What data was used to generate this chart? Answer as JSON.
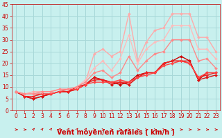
{
  "title": "",
  "xlabel": "Vent moyen/en rafales ( km/h )",
  "ylabel": "",
  "bg_color": "#c8f0ee",
  "grid_color": "#a8d8d8",
  "xlim": [
    -0.5,
    23.5
  ],
  "ylim": [
    0,
    45
  ],
  "xticks": [
    0,
    1,
    2,
    3,
    4,
    5,
    6,
    7,
    8,
    9,
    10,
    11,
    12,
    13,
    14,
    15,
    16,
    17,
    18,
    19,
    20,
    21,
    22,
    23
  ],
  "yticks": [
    0,
    5,
    10,
    15,
    20,
    25,
    30,
    35,
    40,
    45
  ],
  "series": [
    {
      "x": [
        0,
        1,
        2,
        3,
        4,
        5,
        6,
        7,
        8,
        9,
        10,
        11,
        12,
        13,
        14,
        15,
        16,
        17,
        18,
        19,
        20,
        21,
        22,
        23
      ],
      "y": [
        8,
        6,
        5,
        6,
        7,
        8,
        8,
        10,
        11,
        14,
        13,
        12,
        11,
        12,
        15,
        16,
        16,
        20,
        21,
        23,
        21,
        13,
        16,
        16
      ],
      "color": "#cc0000",
      "marker": "D",
      "markersize": 2,
      "linewidth": 1.0
    },
    {
      "x": [
        0,
        1,
        2,
        3,
        4,
        5,
        6,
        7,
        8,
        9,
        10,
        11,
        12,
        13,
        14,
        15,
        16,
        17,
        18,
        19,
        20,
        21,
        22,
        23
      ],
      "y": [
        8,
        6,
        5,
        6,
        7,
        8,
        8,
        9,
        11,
        14,
        13,
        11,
        12,
        11,
        14,
        16,
        16,
        20,
        21,
        21,
        21,
        13,
        14,
        15
      ],
      "color": "#dd1111",
      "marker": "D",
      "markersize": 2,
      "linewidth": 1.0
    },
    {
      "x": [
        0,
        1,
        2,
        3,
        4,
        5,
        6,
        7,
        8,
        9,
        10,
        11,
        12,
        13,
        14,
        15,
        16,
        17,
        18,
        19,
        20,
        21,
        22,
        23
      ],
      "y": [
        8,
        6,
        6,
        7,
        7,
        8,
        8,
        9,
        11,
        13,
        13,
        12,
        12,
        12,
        14,
        16,
        16,
        20,
        21,
        21,
        20,
        14,
        15,
        16
      ],
      "color": "#ee2222",
      "marker": "D",
      "markersize": 2,
      "linewidth": 1.0
    },
    {
      "x": [
        0,
        1,
        2,
        3,
        4,
        5,
        6,
        7,
        8,
        9,
        10,
        11,
        12,
        13,
        14,
        15,
        16,
        17,
        18,
        19,
        20,
        21,
        22,
        23
      ],
      "y": [
        8,
        7,
        7,
        7,
        7,
        8,
        9,
        9,
        11,
        12,
        12,
        12,
        13,
        12,
        14,
        15,
        16,
        19,
        20,
        21,
        20,
        14,
        16,
        16
      ],
      "color": "#ff4444",
      "marker": "D",
      "markersize": 2,
      "linewidth": 1.0
    },
    {
      "x": [
        0,
        1,
        2,
        3,
        4,
        5,
        6,
        7,
        8,
        9,
        10,
        11,
        12,
        13,
        14,
        15,
        16,
        17,
        18,
        19,
        20,
        21,
        22,
        23
      ],
      "y": [
        8,
        7,
        8,
        8,
        8,
        9,
        9,
        10,
        12,
        24,
        26,
        23,
        25,
        41,
        21,
        29,
        34,
        35,
        41,
        41,
        41,
        31,
        31,
        25
      ],
      "color": "#ffaaaa",
      "marker": "D",
      "markersize": 2,
      "linewidth": 1.0
    },
    {
      "x": [
        0,
        1,
        2,
        3,
        4,
        5,
        6,
        7,
        8,
        9,
        10,
        11,
        12,
        13,
        14,
        15,
        16,
        17,
        18,
        19,
        20,
        21,
        22,
        23
      ],
      "y": [
        8,
        7,
        7,
        8,
        8,
        9,
        9,
        10,
        13,
        18,
        21,
        17,
        22,
        32,
        20,
        26,
        29,
        30,
        36,
        36,
        36,
        26,
        26,
        22
      ],
      "color": "#ffbbbb",
      "marker": "D",
      "markersize": 2,
      "linewidth": 1.0
    },
    {
      "x": [
        0,
        1,
        2,
        3,
        4,
        5,
        6,
        7,
        8,
        9,
        10,
        11,
        12,
        13,
        14,
        15,
        16,
        17,
        18,
        19,
        20,
        21,
        22,
        23
      ],
      "y": [
        8,
        7,
        7,
        8,
        8,
        9,
        9,
        10,
        12,
        16,
        17,
        14,
        16,
        23,
        17,
        21,
        24,
        25,
        30,
        30,
        30,
        21,
        22,
        18
      ],
      "color": "#ff8888",
      "marker": "D",
      "markersize": 2,
      "linewidth": 1.0
    }
  ],
  "arrow_color": "#cc0000",
  "xlabel_color": "#cc0000",
  "xlabel_fontsize": 7,
  "tick_color": "#cc0000",
  "tick_fontsize": 5.5
}
